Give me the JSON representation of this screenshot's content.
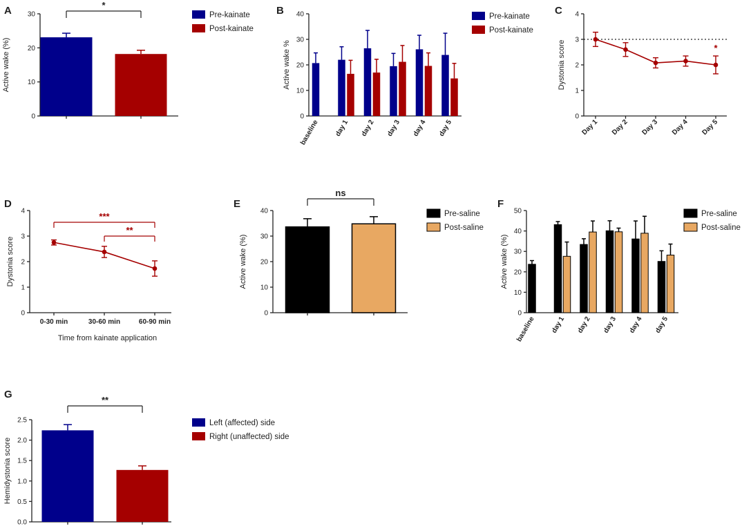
{
  "colors": {
    "blue": "#00008b",
    "red": "#a50000",
    "black": "#000000",
    "orange": "#e8a862",
    "axis": "#222222"
  },
  "chart_data": [
    {
      "panel": "A",
      "type": "bar",
      "categories": [
        "Pre-kainate",
        "Post-kainate"
      ],
      "values": [
        23.1,
        18.2
      ],
      "errors": [
        1.2,
        1.1
      ],
      "ylabel": "Active wake (%)",
      "ylim": [
        0,
        30
      ],
      "yticks": [
        "0",
        "10",
        "20",
        "30"
      ],
      "legend": [
        "Pre-kainate",
        "Post-kainate"
      ],
      "significance": "*"
    },
    {
      "panel": "B",
      "type": "bar",
      "categories": [
        "baseline",
        "day 1",
        "day 2",
        "day 3",
        "day 4",
        "day 5"
      ],
      "series": [
        {
          "name": "Pre-kainate",
          "values": [
            20.7,
            22.0,
            26.5,
            19.5,
            26.1,
            23.9
          ],
          "errors": [
            4.0,
            5.1,
            7.0,
            5.0,
            5.5,
            8.5
          ]
        },
        {
          "name": "Post-kainate",
          "values": [
            null,
            16.5,
            17.0,
            21.2,
            19.6,
            14.7
          ],
          "errors": [
            null,
            5.3,
            5.2,
            6.4,
            5.1,
            5.9
          ]
        }
      ],
      "ylabel": "Active wake %",
      "ylim": [
        0,
        40
      ],
      "yticks": [
        "0",
        "10",
        "20",
        "30",
        "40"
      ],
      "legend": [
        "Pre-kainate",
        "Post-kainate"
      ]
    },
    {
      "panel": "C",
      "type": "line",
      "categories": [
        "Day 1",
        "Day 2",
        "Day 3",
        "Day 4",
        "Day 5"
      ],
      "values": [
        3.0,
        2.6,
        2.08,
        2.15,
        2.0
      ],
      "errors": [
        0.28,
        0.27,
        0.2,
        0.2,
        0.35
      ],
      "reference_line": 3,
      "ylabel": "Dystonia score",
      "ylim": [
        0,
        4
      ],
      "yticks": [
        "0",
        "1",
        "2",
        "3",
        "4"
      ],
      "annotation": "*"
    },
    {
      "panel": "D",
      "type": "line",
      "categories": [
        "0-30 min",
        "30-60 min",
        "60-90 min"
      ],
      "values": [
        2.75,
        2.38,
        1.73
      ],
      "errors": [
        0.1,
        0.22,
        0.3
      ],
      "xlabel": "Time from kainate application",
      "ylabel": "Dystonia score",
      "ylim": [
        0,
        4
      ],
      "yticks": [
        "0",
        "1",
        "2",
        "3",
        "4"
      ],
      "significance": [
        "***",
        "**"
      ]
    },
    {
      "panel": "E",
      "type": "bar",
      "categories": [
        "Pre-saline",
        "Post-saline"
      ],
      "values": [
        33.6,
        34.8
      ],
      "errors": [
        3.2,
        2.8
      ],
      "ylabel": "Active wake (%)",
      "ylim": [
        0,
        40
      ],
      "yticks": [
        "0",
        "10",
        "20",
        "30",
        "40"
      ],
      "legend": [
        "Pre-saline",
        "Post-saline"
      ],
      "significance": "ns"
    },
    {
      "panel": "F",
      "type": "bar",
      "categories": [
        "baseline",
        "day 1",
        "day 2",
        "day 3",
        "day 4",
        "day 5"
      ],
      "series": [
        {
          "name": "Pre-saline",
          "values": [
            23.7,
            43.1,
            33.4,
            40.1,
            36.1,
            25.1
          ],
          "errors": [
            1.8,
            1.5,
            2.8,
            4.9,
            8.8,
            5.2
          ]
        },
        {
          "name": "Post-saline",
          "values": [
            null,
            27.6,
            39.5,
            39.6,
            38.9,
            28.2
          ],
          "errors": [
            null,
            7.0,
            5.4,
            1.8,
            8.3,
            5.4
          ]
        }
      ],
      "ylabel": "Active wake (%)",
      "ylim": [
        0,
        50
      ],
      "yticks": [
        "0",
        "10",
        "20",
        "30",
        "40",
        "50"
      ],
      "legend": [
        "Pre-saline",
        "Post-saline"
      ]
    },
    {
      "panel": "G",
      "type": "bar",
      "categories": [
        "Left (affected) side",
        "Right (unaffected) side"
      ],
      "values": [
        2.24,
        1.27
      ],
      "errors": [
        0.14,
        0.1
      ],
      "ylabel": "Hemidystonia score",
      "ylim": [
        0,
        2.5
      ],
      "yticks": [
        "0.0",
        "0.5",
        "1.0",
        "1.5",
        "2.0",
        "2.5"
      ],
      "legend": [
        "Left (affected) side",
        "Right (unaffected) side"
      ],
      "significance": "**"
    }
  ]
}
